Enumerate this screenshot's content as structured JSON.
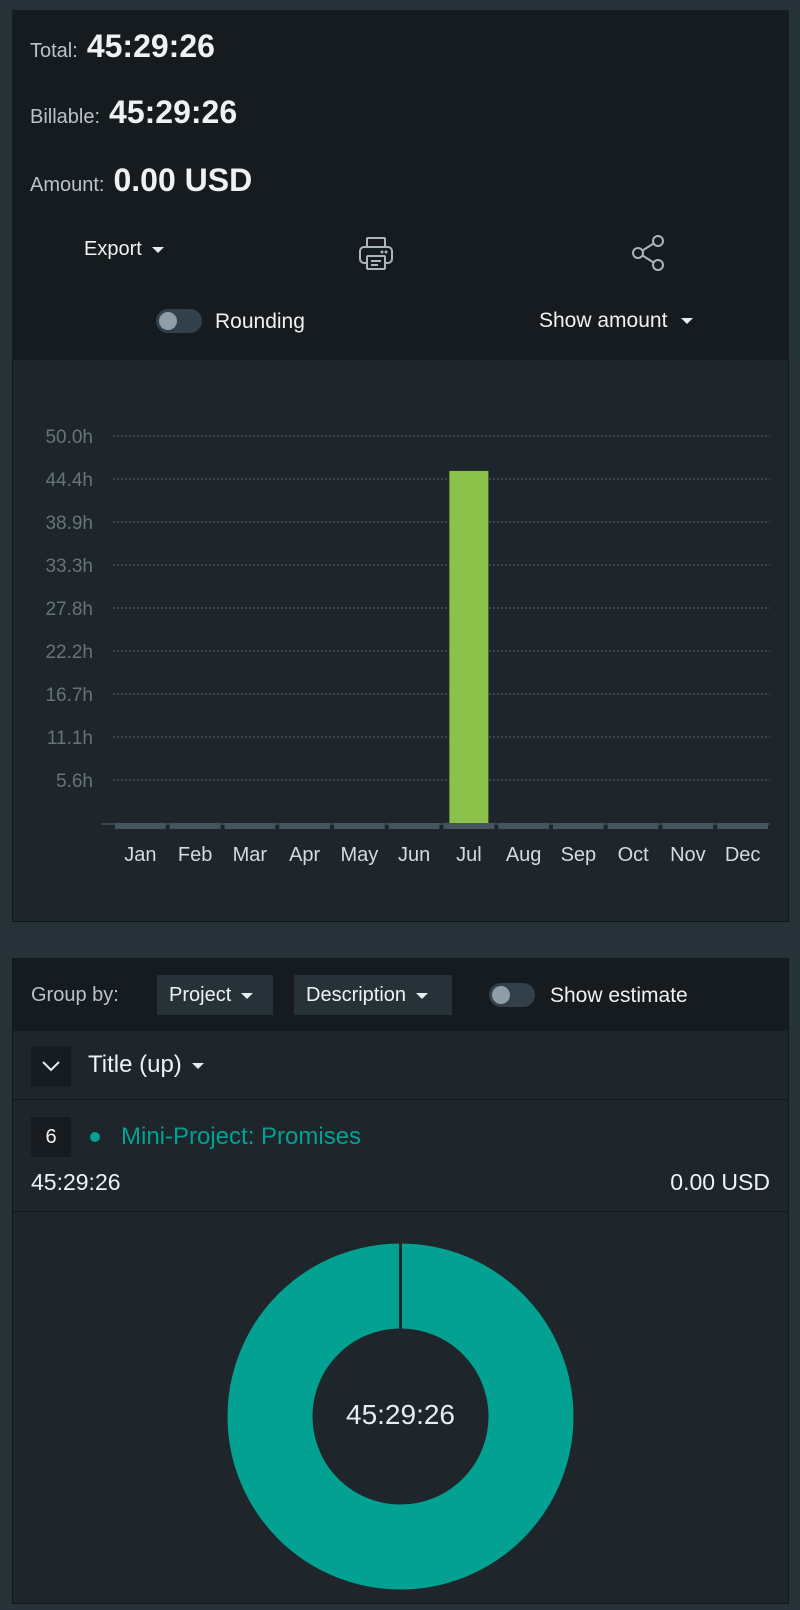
{
  "summary": {
    "total_label": "Total:",
    "total_value": "45:29:26",
    "billable_label": "Billable:",
    "billable_value": "45:29:26",
    "amount_label": "Amount:",
    "amount_value": "0.00 USD"
  },
  "actions": {
    "export_label": "Export",
    "print_icon": "printer-icon",
    "share_icon": "share-icon"
  },
  "options": {
    "rounding_label": "Rounding",
    "rounding_on": false,
    "show_amount_label": "Show amount"
  },
  "chart_data": {
    "type": "bar",
    "categories": [
      "Jan",
      "Feb",
      "Mar",
      "Apr",
      "May",
      "Jun",
      "Jul",
      "Aug",
      "Sep",
      "Oct",
      "Nov",
      "Dec"
    ],
    "values": [
      0,
      0,
      0,
      0,
      0,
      0,
      45.49,
      0,
      0,
      0,
      0,
      0
    ],
    "y_ticks": [
      "5.6h",
      "11.1h",
      "16.7h",
      "22.2h",
      "27.8h",
      "33.3h",
      "38.9h",
      "44.4h",
      "50.0h"
    ],
    "ylim": [
      0,
      50
    ],
    "grid": true,
    "bar_color": "#8bc34a"
  },
  "grouping": {
    "group_by_label": "Group by:",
    "primary": "Project",
    "secondary": "Description",
    "show_estimate_label": "Show estimate",
    "show_estimate_on": false
  },
  "list": {
    "sort_label": "Title (up)",
    "projects": [
      {
        "count": "6",
        "name": "Mini-Project: Promises",
        "duration": "45:29:26",
        "amount": "0.00 USD",
        "color": "#03a192"
      }
    ]
  },
  "donut": {
    "center_label": "45:29:26",
    "slices": [
      {
        "value": 100,
        "color": "#03a192"
      }
    ]
  }
}
